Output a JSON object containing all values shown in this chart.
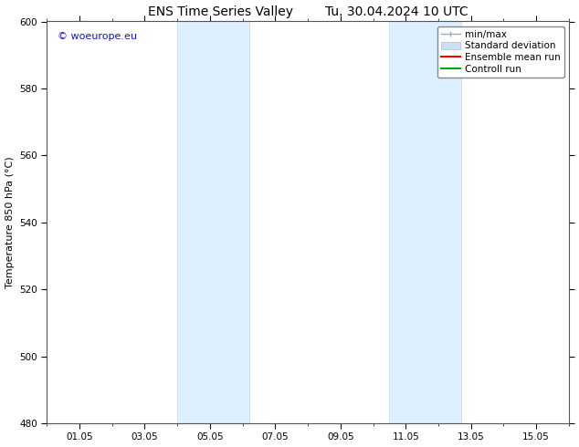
{
  "title_left": "ENS Time Series Valley",
  "title_right": "Tu. 30.04.2024 10 UTC",
  "ylabel": "Temperature 850 hPa (°C)",
  "ylim": [
    480,
    600
  ],
  "yticks": [
    480,
    500,
    520,
    540,
    560,
    580,
    600
  ],
  "xtick_labels": [
    "01.05",
    "03.05",
    "05.05",
    "07.05",
    "09.05",
    "11.05",
    "13.05",
    "15.05"
  ],
  "xtick_positions": [
    1,
    3,
    5,
    7,
    9,
    11,
    13,
    15
  ],
  "xlim": [
    0.0,
    16.0
  ],
  "shaded_regions": [
    {
      "start": 4.0,
      "end": 6.2
    },
    {
      "start": 10.5,
      "end": 12.7
    }
  ],
  "shaded_color": "#ddeeff",
  "shaded_edge_color": "#c0d8ee",
  "bg_color": "#ffffff",
  "watermark_text": "© woeurope.eu",
  "watermark_color": "#1515cc",
  "legend_labels": [
    "min/max",
    "Standard deviation",
    "Ensemble mean run",
    "Controll run"
  ],
  "legend_colors": [
    "#aaaaaa",
    "#cce0f0",
    "#ff0000",
    "#00aa00"
  ],
  "title_fontsize": 10,
  "axis_fontsize": 8,
  "tick_fontsize": 7.5,
  "legend_fontsize": 7.5
}
